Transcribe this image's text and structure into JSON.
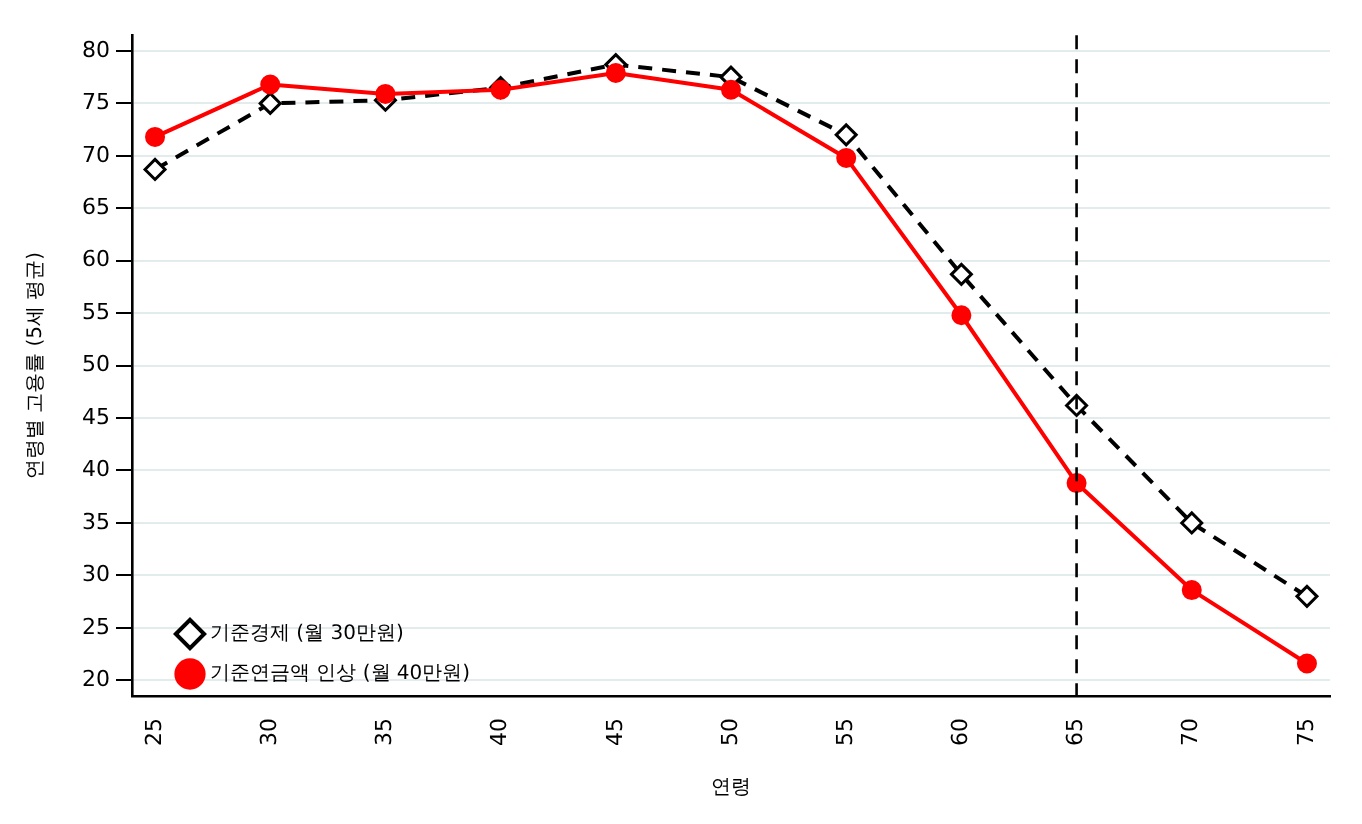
{
  "chart_data": {
    "type": "line",
    "xlabel": "연령",
    "ylabel": "연령별 고용률 (5세 평균)",
    "x": [
      25,
      30,
      35,
      40,
      45,
      50,
      55,
      60,
      65,
      70,
      75
    ],
    "series": [
      {
        "name": "기준경제 (월 30만원)",
        "color": "#000000",
        "line_style": "dashed",
        "marker": "diamond",
        "values": [
          68.7,
          75,
          75.3,
          76.5,
          78.7,
          77.5,
          72,
          58.7,
          46.2,
          35,
          28
        ]
      },
      {
        "name": "기준연금액 인상 (월 40만원)",
        "color": "#ff0000",
        "line_style": "solid",
        "marker": "circle",
        "values": [
          71.8,
          76.8,
          75.9,
          76.3,
          77.9,
          76.3,
          69.8,
          54.8,
          38.8,
          28.6,
          21.6
        ]
      }
    ],
    "xlim": [
      24,
      76
    ],
    "xticks": [
      25,
      30,
      35,
      40,
      45,
      50,
      55,
      60,
      65,
      70,
      75
    ],
    "ylim": [
      18.5,
      81.5
    ],
    "yticks": [
      20,
      25,
      30,
      35,
      40,
      45,
      50,
      55,
      60,
      65,
      70,
      75,
      80
    ],
    "grid": "y",
    "legend": "bottom left",
    "ref_lines": [
      {
        "axis": "x",
        "value": 65,
        "color": "#000000",
        "line_style": "dashed"
      }
    ]
  }
}
